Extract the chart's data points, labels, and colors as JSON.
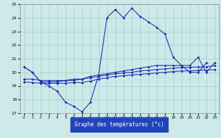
{
  "background_color": "#cce8e8",
  "grid_color": "#aacccc",
  "line_color": "#2233bb",
  "xlabel": "Graphe des températures (°c)",
  "xlim": [
    -0.5,
    23.5
  ],
  "ylim": [
    17,
    25
  ],
  "yticks": [
    17,
    18,
    19,
    20,
    21,
    22,
    23,
    24,
    25
  ],
  "xticks": [
    0,
    1,
    2,
    3,
    4,
    5,
    6,
    7,
    8,
    9,
    10,
    11,
    12,
    13,
    14,
    15,
    16,
    17,
    18,
    19,
    20,
    21,
    22,
    23
  ],
  "series1_x": [
    0,
    1,
    2,
    3,
    4,
    5,
    6,
    7,
    8,
    9,
    10,
    11,
    12,
    13,
    14,
    15,
    16,
    17,
    18,
    19,
    20,
    21,
    22
  ],
  "series1_y": [
    20.4,
    20.0,
    19.3,
    19.0,
    18.6,
    17.8,
    17.5,
    17.1,
    17.8,
    19.8,
    24.0,
    24.6,
    24.0,
    24.7,
    24.1,
    23.7,
    23.3,
    22.8,
    21.1,
    20.5,
    20.0,
    20.0,
    20.7
  ],
  "series2_x": [
    0,
    1,
    2,
    3,
    4,
    5,
    6,
    7,
    8,
    9,
    10,
    11,
    12,
    13,
    14,
    15,
    16,
    17,
    18,
    19,
    20,
    21,
    22,
    23
  ],
  "series2_y": [
    20.4,
    20.0,
    19.3,
    19.3,
    19.3,
    19.4,
    19.4,
    19.5,
    19.7,
    19.8,
    19.9,
    20.0,
    20.1,
    20.2,
    20.3,
    20.4,
    20.5,
    20.5,
    20.5,
    20.5,
    20.5,
    21.1,
    20.0,
    20.7
  ],
  "series3_x": [
    0,
    1,
    2,
    3,
    4,
    5,
    6,
    7,
    8,
    9,
    10,
    11,
    12,
    13,
    14,
    15,
    16,
    17,
    18,
    19,
    20,
    21,
    22,
    23
  ],
  "series3_y": [
    19.5,
    19.5,
    19.4,
    19.4,
    19.4,
    19.4,
    19.5,
    19.5,
    19.6,
    19.7,
    19.8,
    19.9,
    19.95,
    20.0,
    20.1,
    20.15,
    20.2,
    20.25,
    20.3,
    20.35,
    20.35,
    20.4,
    20.4,
    20.5
  ],
  "series4_x": [
    0,
    1,
    2,
    3,
    4,
    5,
    6,
    7,
    8,
    9,
    10,
    11,
    12,
    13,
    14,
    15,
    16,
    17,
    18,
    19,
    20,
    21,
    22,
    23
  ],
  "series4_y": [
    19.3,
    19.25,
    19.2,
    19.2,
    19.2,
    19.2,
    19.25,
    19.25,
    19.35,
    19.5,
    19.6,
    19.7,
    19.75,
    19.8,
    19.85,
    19.9,
    19.95,
    20.0,
    20.05,
    20.1,
    20.1,
    20.15,
    20.15,
    20.2
  ]
}
